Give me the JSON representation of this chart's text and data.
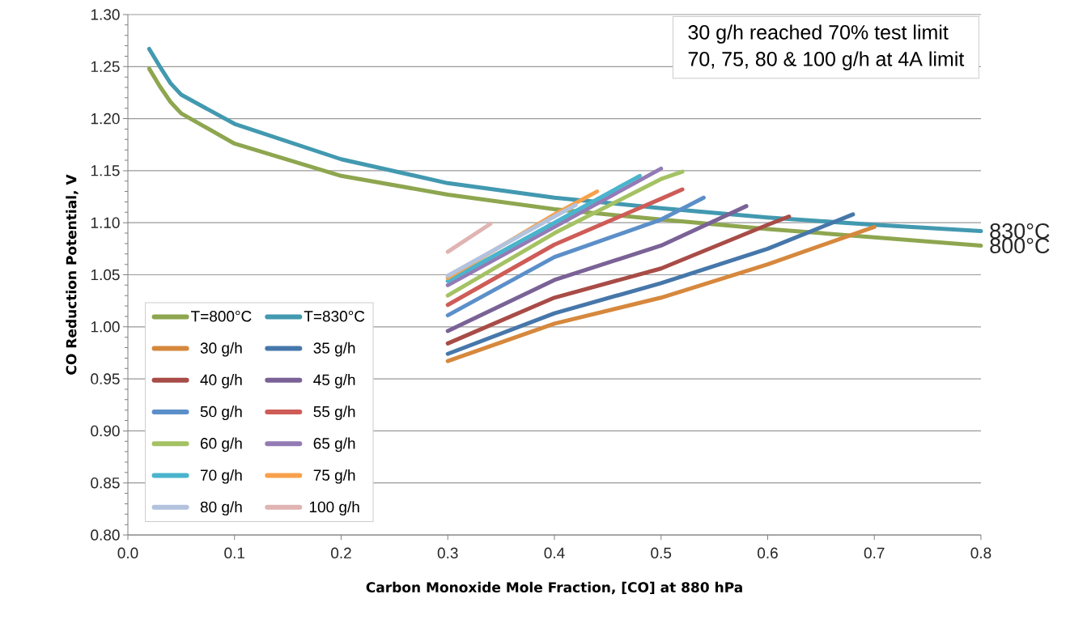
{
  "chart_data": {
    "type": "line",
    "xlabel": "Carbon Monoxide Mole Fraction, [CO] at 880 hPa",
    "ylabel": "CO Reduction Potential, V",
    "xlim": [
      0,
      0.8
    ],
    "ylim": [
      0.8,
      1.3
    ],
    "xticks": [
      {
        "value": 0,
        "label": "0.0"
      },
      0.1,
      0.2,
      0.3,
      0.4,
      0.5,
      0.6,
      0.7,
      0.8
    ],
    "yticks": [
      {
        "value": 0.8,
        "label": "0.80"
      },
      0.85,
      {
        "value": 0.9,
        "label": "0.90"
      },
      0.95,
      {
        "value": 1.0,
        "label": "1.00"
      },
      1.05,
      {
        "value": 1.1,
        "label": "1.10"
      },
      1.15,
      {
        "value": 1.2,
        "label": "1.20"
      },
      1.25,
      {
        "value": 1.3,
        "label": "1.30"
      }
    ],
    "grid": "y",
    "legend": "bottom left",
    "marker": "none",
    "line_style": "solid",
    "annotations": [
      "30 g/h reached 70% test limit",
      "70, 75, 80 & 100 g/h at 4A limit",
      {
        "text": "830°C",
        "x": 0.8,
        "y": 1.092
      },
      {
        "text": "800°C",
        "x": 0.8,
        "y": 1.078
      }
    ],
    "series": [
      {
        "name": "T=800°C",
        "color": "#8ea64f",
        "x": [
          0.02,
          0.03,
          0.04,
          0.05,
          0.1,
          0.2,
          0.3,
          0.4,
          0.5,
          0.6,
          0.7,
          0.8
        ],
        "values": [
          1.248,
          1.231,
          1.216,
          1.205,
          1.176,
          1.145,
          1.127,
          1.113,
          1.103,
          1.094,
          1.086,
          1.078
        ]
      },
      {
        "name": "T=830°C",
        "color": "#4299b0",
        "x": [
          0.02,
          0.03,
          0.04,
          0.05,
          0.1,
          0.2,
          0.3,
          0.4,
          0.5,
          0.6,
          0.7,
          0.8
        ],
        "values": [
          1.267,
          1.25,
          1.234,
          1.223,
          1.195,
          1.161,
          1.138,
          1.124,
          1.114,
          1.105,
          1.098,
          1.092
        ]
      },
      {
        "name": "30 g/h",
        "color": "#d6883d",
        "x": [
          0.3,
          0.4,
          0.5,
          0.6,
          0.7
        ],
        "values": [
          0.967,
          1.003,
          1.028,
          1.06,
          1.096
        ]
      },
      {
        "name": "35 g/h",
        "color": "#4677aa",
        "x": [
          0.3,
          0.4,
          0.5,
          0.6,
          0.68
        ],
        "values": [
          0.974,
          1.013,
          1.042,
          1.075,
          1.108
        ]
      },
      {
        "name": "40 g/h",
        "color": "#a84c47",
        "x": [
          0.3,
          0.4,
          0.5,
          0.6,
          0.62
        ],
        "values": [
          0.984,
          1.028,
          1.056,
          1.098,
          1.106
        ]
      },
      {
        "name": "45 g/h",
        "color": "#7a6296",
        "x": [
          0.3,
          0.4,
          0.5,
          0.58
        ],
        "values": [
          0.996,
          1.045,
          1.078,
          1.116
        ]
      },
      {
        "name": "50 g/h",
        "color": "#5b8fc9",
        "x": [
          0.3,
          0.4,
          0.5,
          0.54
        ],
        "values": [
          1.011,
          1.067,
          1.103,
          1.124
        ]
      },
      {
        "name": "55 g/h",
        "color": "#ce5c57",
        "x": [
          0.3,
          0.4,
          0.5,
          0.52
        ],
        "values": [
          1.021,
          1.079,
          1.123,
          1.132
        ]
      },
      {
        "name": "60 g/h",
        "color": "#a4c263",
        "x": [
          0.3,
          0.4,
          0.5,
          0.52
        ],
        "values": [
          1.03,
          1.09,
          1.142,
          1.149
        ]
      },
      {
        "name": "65 g/h",
        "color": "#937bb5",
        "x": [
          0.3,
          0.4,
          0.5
        ],
        "values": [
          1.04,
          1.096,
          1.152
        ]
      },
      {
        "name": "70 g/h",
        "color": "#4ab4cd",
        "x": [
          0.3,
          0.4,
          0.48
        ],
        "values": [
          1.044,
          1.1,
          1.145
        ]
      },
      {
        "name": "75 g/h",
        "color": "#f7a14b",
        "x": [
          0.3,
          0.4,
          0.44
        ],
        "values": [
          1.047,
          1.108,
          1.13
        ]
      },
      {
        "name": "80 g/h",
        "color": "#b3c3de",
        "x": [
          0.3,
          0.4,
          0.42
        ],
        "values": [
          1.049,
          1.106,
          1.117
        ]
      },
      {
        "name": "100 g/h",
        "color": "#e0b4b2",
        "x": [
          0.3,
          0.34
        ],
        "values": [
          1.072,
          1.099
        ]
      }
    ]
  }
}
